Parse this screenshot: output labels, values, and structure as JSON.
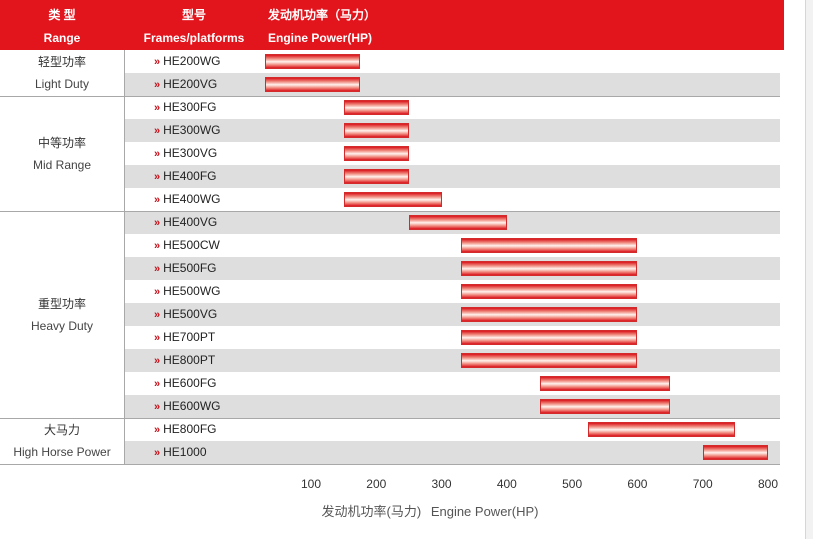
{
  "chart_data": {
    "type": "bar",
    "subtype": "range",
    "headers": {
      "range_cn": "类 型",
      "range_en": "Range",
      "model_cn": "型号",
      "model_en": "Frames/platforms",
      "power_cn": "发动机功率（马力）",
      "power_en": "Engine Power(HP)"
    },
    "groups": [
      {
        "name_cn": "轻型功率",
        "name_en": "Light Duty",
        "rows": [
          0,
          1
        ]
      },
      {
        "name_cn": "中等功率",
        "name_en": "Mid Range",
        "rows": [
          2,
          6
        ]
      },
      {
        "name_cn": "重型功率",
        "name_en": "Heavy Duty",
        "rows": [
          7,
          15
        ]
      },
      {
        "name_cn": "大马力",
        "name_en": "High Horse Power",
        "rows": [
          16,
          17
        ]
      }
    ],
    "rows": [
      {
        "model": "HE200WG",
        "min": 30,
        "max": 175
      },
      {
        "model": "HE200VG",
        "min": 30,
        "max": 175
      },
      {
        "model": "HE300FG",
        "min": 150,
        "max": 250
      },
      {
        "model": "HE300WG",
        "min": 150,
        "max": 250
      },
      {
        "model": "HE300VG",
        "min": 150,
        "max": 250
      },
      {
        "model": "HE400FG",
        "min": 150,
        "max": 250
      },
      {
        "model": "HE400WG",
        "min": 150,
        "max": 300
      },
      {
        "model": "HE400VG",
        "min": 250,
        "max": 400
      },
      {
        "model": "HE500CW",
        "min": 330,
        "max": 600
      },
      {
        "model": "HE500FG",
        "min": 330,
        "max": 600
      },
      {
        "model": "HE500WG",
        "min": 330,
        "max": 600
      },
      {
        "model": "HE500VG",
        "min": 330,
        "max": 600
      },
      {
        "model": "HE700PT",
        "min": 330,
        "max": 600
      },
      {
        "model": "HE800PT",
        "min": 330,
        "max": 600
      },
      {
        "model": "HE600FG",
        "min": 450,
        "max": 650
      },
      {
        "model": "HE600WG",
        "min": 450,
        "max": 650
      },
      {
        "model": "HE800FG",
        "min": 525,
        "max": 750
      },
      {
        "model": "HE1000",
        "min": 700,
        "max": 800
      }
    ],
    "xticks": [
      100,
      200,
      300,
      400,
      500,
      600,
      700,
      800
    ],
    "xlim": [
      30,
      800
    ],
    "xlabel_cn": "发动机功率(马力)",
    "xlabel_en": "Engine Power(HP)",
    "bar_color": "#e2141c"
  }
}
